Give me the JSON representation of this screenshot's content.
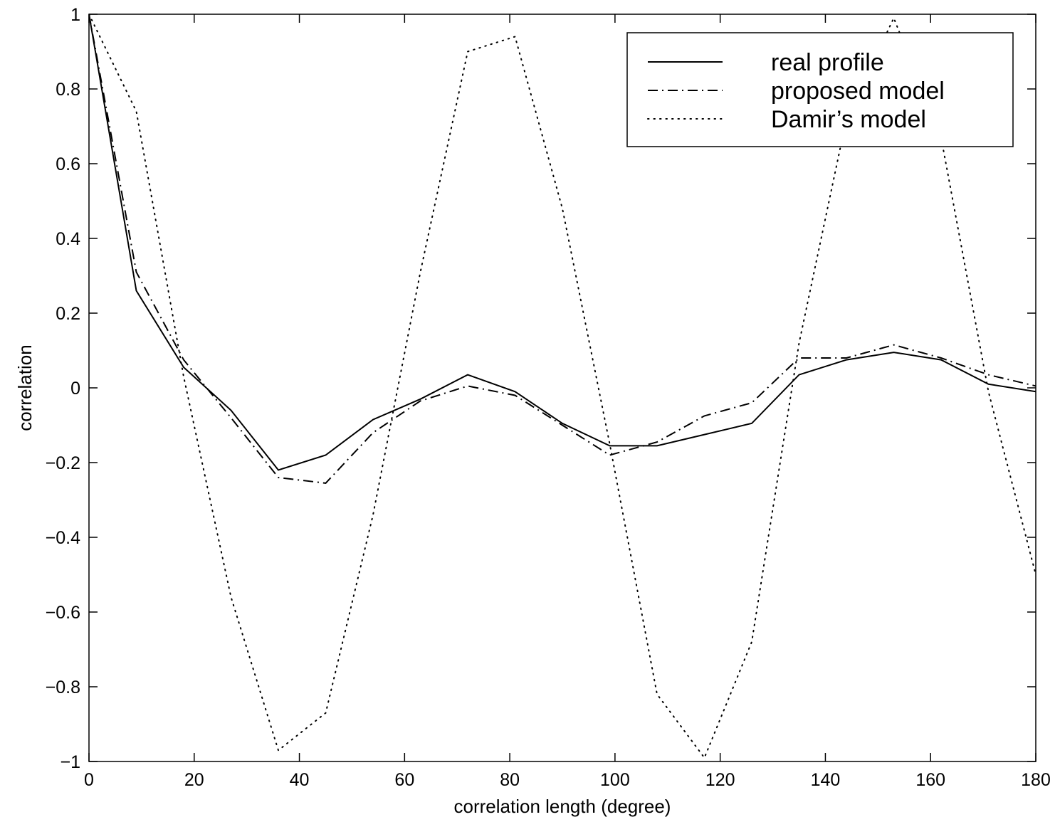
{
  "chart_data": {
    "type": "line",
    "xlabel": "correlation length (degree)",
    "ylabel": "correlation",
    "xlim": [
      0,
      180
    ],
    "ylim": [
      -1,
      1
    ],
    "xticks": [
      "0",
      "20",
      "40",
      "60",
      "80",
      "100",
      "120",
      "140",
      "160",
      "180"
    ],
    "yticks": [
      "1",
      "0.8",
      "0.6",
      "0.4",
      "0.2",
      "0",
      "−0.2",
      "−0.4",
      "−0.6",
      "−0.8",
      "−1"
    ],
    "grid": false,
    "legend_position": "top-right",
    "x": [
      0,
      9,
      18,
      27,
      36,
      45,
      54,
      63,
      72,
      81,
      90,
      99,
      108,
      117,
      126,
      135,
      144,
      153,
      162,
      171,
      180
    ],
    "series": [
      {
        "name": "real profile",
        "style": "solid",
        "values": [
          1.0,
          0.26,
          0.055,
          -0.06,
          -0.22,
          -0.18,
          -0.085,
          -0.03,
          0.035,
          -0.01,
          -0.095,
          -0.155,
          -0.155,
          -0.125,
          -0.095,
          0.035,
          0.075,
          0.095,
          0.075,
          0.01,
          -0.01
        ]
      },
      {
        "name": "proposed model",
        "style": "dashdot",
        "values": [
          1.0,
          0.31,
          0.075,
          -0.08,
          -0.24,
          -0.255,
          -0.12,
          -0.035,
          0.005,
          -0.02,
          -0.1,
          -0.18,
          -0.145,
          -0.075,
          -0.04,
          0.08,
          0.08,
          0.115,
          0.08,
          0.035,
          0.005
        ]
      },
      {
        "name": "Damir’s model",
        "style": "dotted",
        "values": [
          1.0,
          0.74,
          0.03,
          -0.56,
          -0.97,
          -0.87,
          -0.34,
          0.31,
          0.9,
          0.94,
          0.48,
          -0.15,
          -0.82,
          -0.99,
          -0.68,
          0.12,
          0.72,
          0.99,
          0.67,
          -0.01,
          -0.5
        ]
      }
    ]
  }
}
